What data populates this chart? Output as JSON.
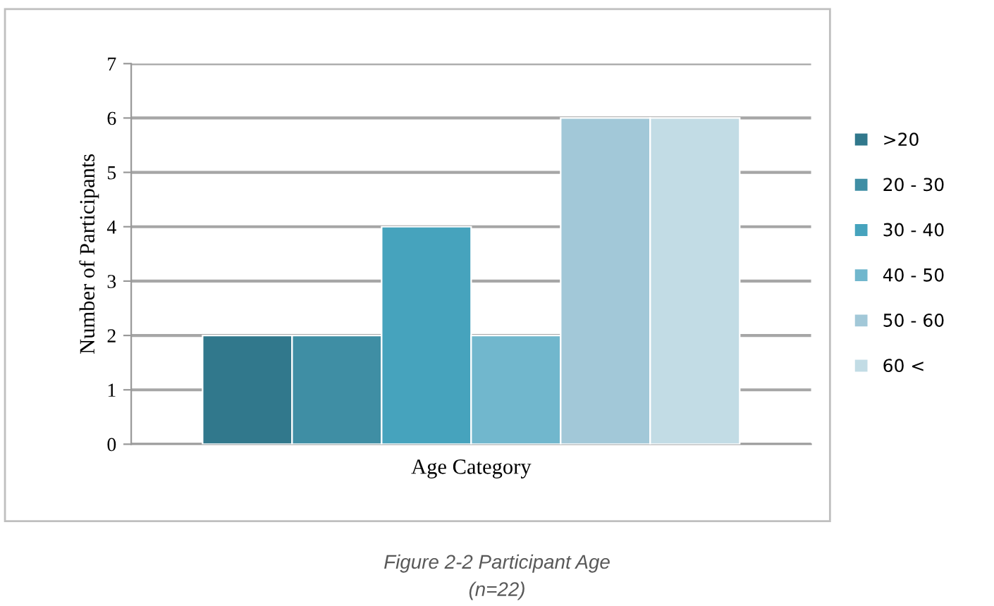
{
  "chart_data": {
    "type": "bar",
    "xlabel": "Age Category",
    "ylabel": "Number of Participants",
    "categories": [
      null
    ],
    "series": [
      {
        "name": ">20",
        "color": "#31788c",
        "values": [
          2
        ]
      },
      {
        "name": "20 - 30",
        "color": "#3f8ea4",
        "values": [
          2
        ]
      },
      {
        "name": "30 - 40",
        "color": "#46a3bd",
        "values": [
          4
        ]
      },
      {
        "name": "40 - 50",
        "color": "#71b7cd",
        "values": [
          2
        ]
      },
      {
        "name": "50 - 60",
        "color": "#a2c8d8",
        "values": [
          6
        ]
      },
      {
        "name": "60 <",
        "color": "#c2dce5",
        "values": [
          6
        ]
      }
    ],
    "ylim": [
      0,
      7
    ],
    "yticks": [
      0,
      1,
      2,
      3,
      4,
      5,
      6,
      7
    ],
    "grid": "y",
    "legend": "right",
    "annotations": [
      "Figure 2-2 Participant Age",
      "(n=22)"
    ]
  }
}
